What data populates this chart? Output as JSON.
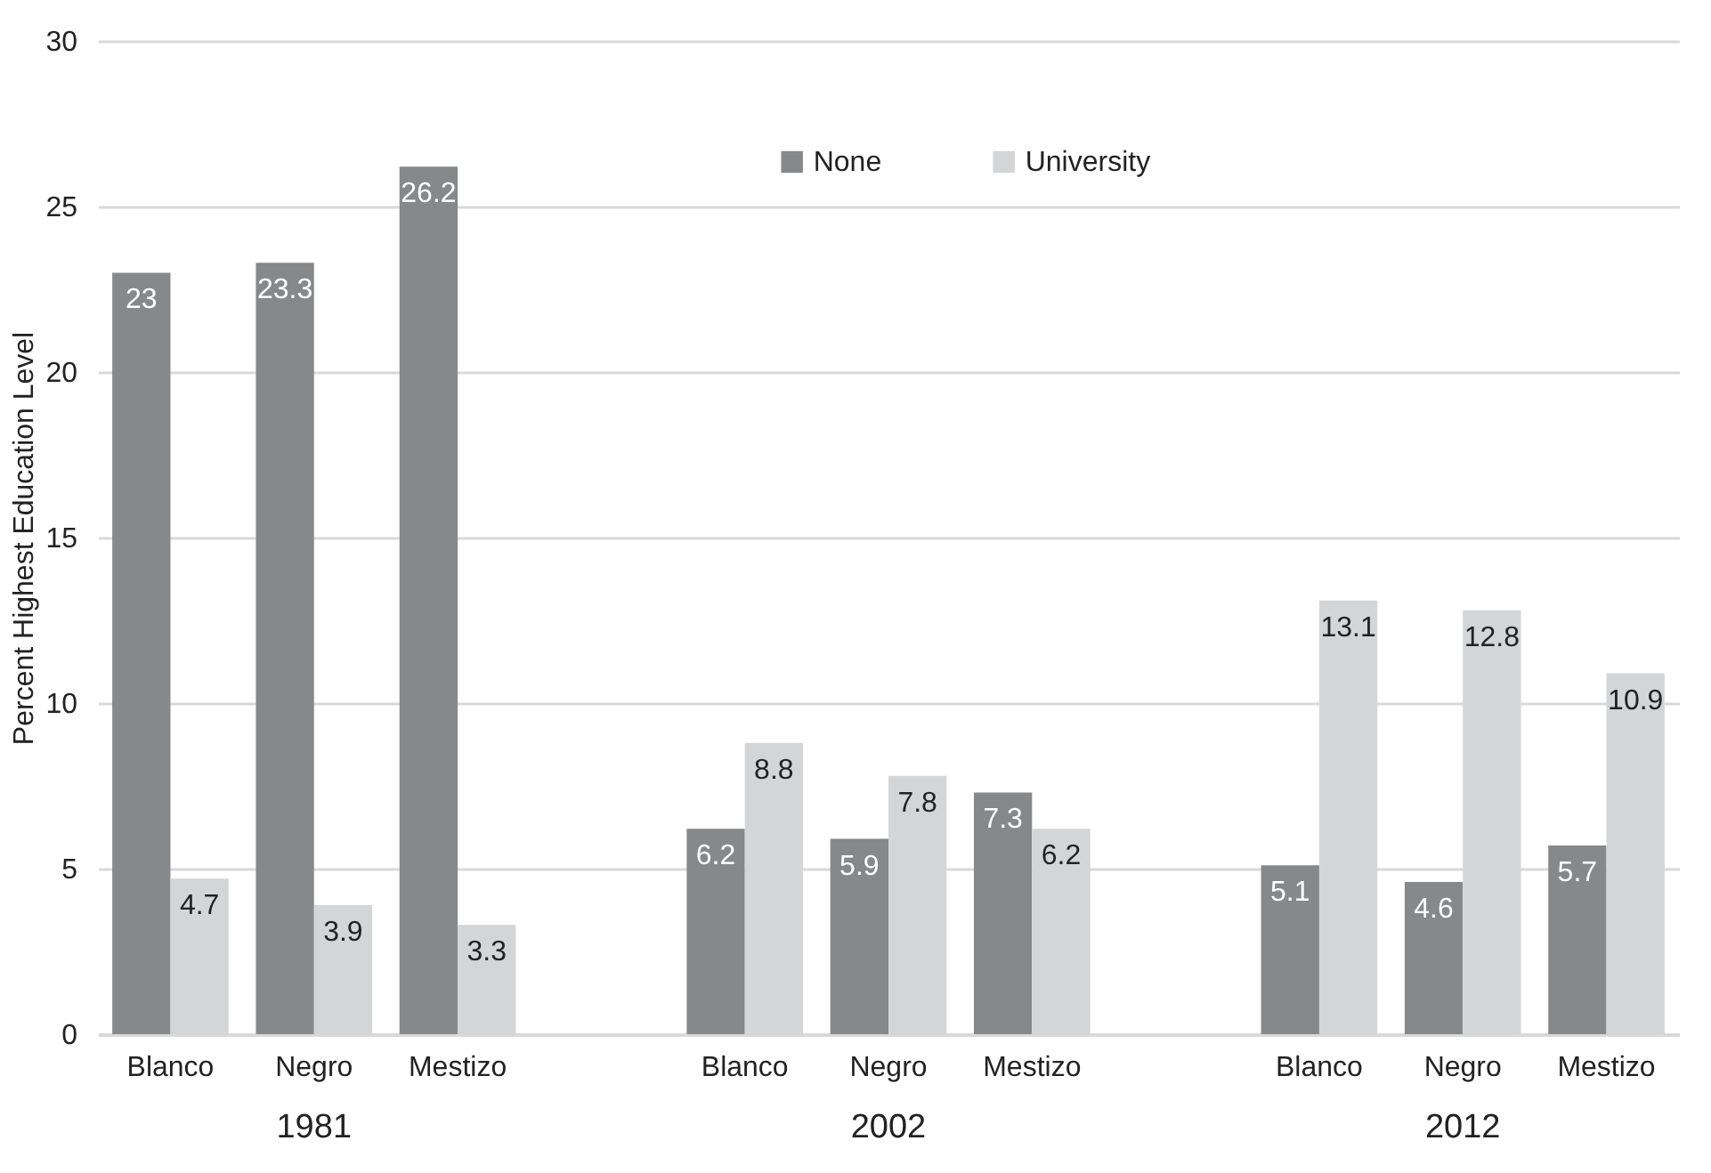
{
  "chart_data": {
    "type": "bar",
    "ylabel": "Percent Highest Education Level",
    "categories": [
      "Blanco",
      "Negro",
      "Mestizo",
      null,
      "Blanco",
      "Negro",
      "Mestizo",
      null,
      "Blanco",
      "Negro",
      "Mestizo"
    ],
    "series": [
      {
        "name": "None",
        "color": "#87888a",
        "values": [
          23,
          23.3,
          26.2,
          null,
          6.2,
          5.9,
          7.3,
          null,
          5.1,
          4.6,
          5.7
        ]
      },
      {
        "name": "University",
        "color": "#d4d5d7",
        "values": [
          4.7,
          3.9,
          3.3,
          null,
          8.8,
          7.8,
          6.2,
          null,
          13.1,
          12.8,
          10.9
        ]
      }
    ],
    "annotations": [
      "1981",
      "2002",
      "2012"
    ],
    "ylim": [
      0,
      30
    ],
    "yticks": [
      0,
      5,
      10,
      15,
      20,
      25,
      30
    ],
    "grid": "y",
    "legend": "top",
    "data_labels": true
  }
}
